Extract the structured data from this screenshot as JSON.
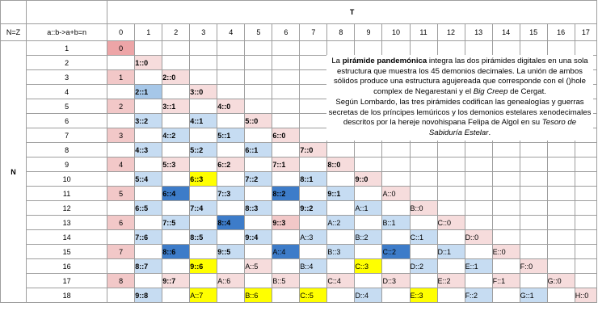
{
  "title": "T",
  "row_axis": "N",
  "nz_label": "N=Z",
  "rule_label": "a::b->a+b=n",
  "columns": [
    "0",
    "1",
    "2",
    "3",
    "4",
    "5",
    "6",
    "7",
    "8",
    "9",
    "10",
    "11",
    "12",
    "13",
    "14",
    "15",
    "16",
    "17"
  ],
  "rows": [
    {
      "n": "1",
      "cells": [
        [
          "0",
          "p1"
        ]
      ]
    },
    {
      "n": "2",
      "cells": [
        null,
        [
          "1::0",
          "p3"
        ]
      ]
    },
    {
      "n": "3",
      "cells": [
        [
          "1",
          "p2"
        ],
        null,
        [
          "2::0",
          "p3"
        ]
      ]
    },
    {
      "n": "4",
      "cells": [
        null,
        [
          "2::1",
          "b2"
        ],
        null,
        [
          "3::0",
          "p3"
        ]
      ]
    },
    {
      "n": "5",
      "cells": [
        [
          "2",
          "p2"
        ],
        null,
        [
          "3::1",
          "p3"
        ],
        null,
        [
          "4::0",
          "p3"
        ]
      ]
    },
    {
      "n": "6",
      "cells": [
        null,
        [
          "3::2",
          "b1"
        ],
        null,
        [
          "4::1",
          "b1"
        ],
        null,
        [
          "5::0",
          "p3"
        ]
      ]
    },
    {
      "n": "7",
      "cells": [
        [
          "3",
          "p2"
        ],
        null,
        [
          "4::2",
          "b1"
        ],
        null,
        [
          "5::1",
          "b1"
        ],
        null,
        [
          "6::0",
          "p3"
        ]
      ]
    },
    {
      "n": "8",
      "cells": [
        null,
        [
          "4::3",
          "b1"
        ],
        null,
        [
          "5::2",
          "b1"
        ],
        null,
        [
          "6::1",
          "b1"
        ],
        null,
        [
          "7::0",
          "p3"
        ]
      ]
    },
    {
      "n": "9",
      "cells": [
        [
          "4",
          "p2"
        ],
        null,
        [
          "5::3",
          "p3"
        ],
        null,
        [
          "6::2",
          "p3"
        ],
        null,
        [
          "7::1",
          "p3"
        ],
        null,
        [
          "8::0",
          "p3"
        ]
      ]
    },
    {
      "n": "10",
      "cells": [
        null,
        [
          "5::4",
          "b1"
        ],
        null,
        [
          "6::3",
          "y1"
        ],
        null,
        [
          "7::2",
          "b1"
        ],
        null,
        [
          "8::1",
          "b1"
        ],
        null,
        [
          "9::0",
          "p3"
        ]
      ]
    },
    {
      "n": "11",
      "cells": [
        [
          "5",
          "p2"
        ],
        null,
        [
          "6::4",
          "b3"
        ],
        null,
        [
          "7::3",
          "b1"
        ],
        null,
        [
          "8::2",
          "b3"
        ],
        null,
        [
          "9::1",
          "b1"
        ],
        null,
        [
          "A::0",
          "p3"
        ]
      ]
    },
    {
      "n": "12",
      "cells": [
        null,
        [
          "6::5",
          "b1"
        ],
        null,
        [
          "7::4",
          "b1"
        ],
        null,
        [
          "8::3",
          "b1"
        ],
        null,
        [
          "9::2",
          "b1"
        ],
        null,
        [
          "A::1",
          "b1"
        ],
        null,
        [
          "B::0",
          "p3"
        ]
      ]
    },
    {
      "n": "13",
      "cells": [
        [
          "6",
          "p2"
        ],
        null,
        [
          "7::5",
          "b1"
        ],
        null,
        [
          "8::4",
          "b3"
        ],
        null,
        [
          "9::3",
          "p2"
        ],
        null,
        [
          "A::2",
          "b1"
        ],
        null,
        [
          "B::1",
          "b1"
        ],
        null,
        [
          "C::0",
          "p3"
        ]
      ]
    },
    {
      "n": "14",
      "cells": [
        null,
        [
          "7::6",
          "b1"
        ],
        null,
        [
          "8::5",
          "b1"
        ],
        null,
        [
          "9::4",
          "b1"
        ],
        null,
        [
          "A::3",
          "b1"
        ],
        null,
        [
          "B::2",
          "b1"
        ],
        null,
        [
          "C::1",
          "b1"
        ],
        null,
        [
          "D::0",
          "p3"
        ]
      ]
    },
    {
      "n": "15",
      "cells": [
        [
          "7",
          "p2"
        ],
        null,
        [
          "8::6",
          "b3"
        ],
        null,
        [
          "9::5",
          "b1"
        ],
        null,
        [
          "A::4",
          "b3"
        ],
        null,
        [
          "B::3",
          "b1"
        ],
        null,
        [
          "C::2",
          "b3"
        ],
        null,
        [
          "D::1",
          "b1"
        ],
        null,
        [
          "E::0",
          "p3"
        ]
      ]
    },
    {
      "n": "16",
      "cells": [
        null,
        [
          "8::7",
          "b1"
        ],
        null,
        [
          "9::6",
          "y1"
        ],
        null,
        [
          "A::5",
          "p3"
        ],
        null,
        [
          "B::4",
          "b1"
        ],
        null,
        [
          "C::3",
          "y1"
        ],
        null,
        [
          "D::2",
          "b1"
        ],
        null,
        [
          "E::1",
          "b1"
        ],
        null,
        [
          "F::0",
          "p3"
        ]
      ]
    },
    {
      "n": "17",
      "cells": [
        [
          "8",
          "p2"
        ],
        null,
        [
          "9::7",
          "p3"
        ],
        null,
        [
          "A::6",
          "p3"
        ],
        null,
        [
          "B::5",
          "p3"
        ],
        null,
        [
          "C::4",
          "p3"
        ],
        null,
        [
          "D::3",
          "p3"
        ],
        null,
        [
          "E::2",
          "p3"
        ],
        null,
        [
          "F::1",
          "p3"
        ],
        null,
        [
          "G::0",
          "p3"
        ]
      ]
    },
    {
      "n": "18",
      "cells": [
        null,
        [
          "9::8",
          "b1"
        ],
        null,
        [
          "A::7",
          "y1"
        ],
        null,
        [
          "B::6",
          "y1"
        ],
        null,
        [
          "C::5",
          "y1"
        ],
        null,
        [
          "D::4",
          "b1"
        ],
        null,
        [
          "E::3",
          "y1"
        ],
        null,
        [
          "F::2",
          "b1"
        ],
        null,
        [
          "G::1",
          "b1"
        ],
        null,
        [
          "H::0",
          "p3"
        ]
      ]
    }
  ],
  "description": {
    "l1a": "La ",
    "l1b": "pirámide pandemónica",
    "l1c": " integra las dos pirámides digitales en una sola estructura que muestra los 45 demonios decimales. La unión de ambos sólidos produce una estructura agujereada que corresponde con el ()hole complex de Negarestani y el ",
    "l1d": "Big Creep",
    "l1e": " de Cergat.",
    "l2a": "Según Lombardo, las tres pirámides codifican las genealogías y guerras secretas de los príncipes lemúricos y los demonios estelares xenodecimales descritos por la hereje novohispana Felipa de Algol en su ",
    "l2b": "Tesoro de Sabiduría Estelar",
    "l2c": "."
  },
  "colors": {
    "p1": "#eda5a7",
    "p2": "#f2c8c8",
    "p3": "#f6dcdc",
    "b1": "#c6dcf2",
    "b2": "#a6c7e8",
    "b3": "#3d7cc9",
    "y1": "#ffff00"
  }
}
